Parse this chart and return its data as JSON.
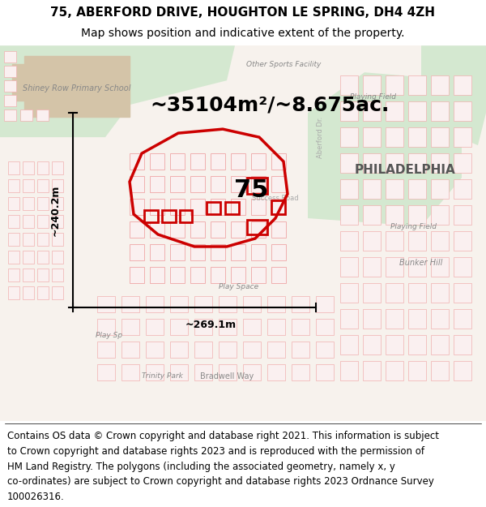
{
  "title_line1": "75, ABERFORD DRIVE, HOUGHTON LE SPRING, DH4 4ZH",
  "title_line2": "Map shows position and indicative extent of the property.",
  "area_text": "~35104m²/~8.675ac.",
  "measurement_v": "~240.2m",
  "measurement_h": "~269.1m",
  "label_75": "75",
  "footer_lines": [
    "Contains OS data © Crown copyright and database right 2021. This information is subject",
    "to Crown copyright and database rights 2023 and is reproduced with the permission of",
    "HM Land Registry. The polygons (including the associated geometry, namely x, y",
    "co-ordinates) are subject to Crown copyright and database rights 2023 Ordnance Survey",
    "100026316."
  ],
  "map_bg": "#f8f4f0",
  "title_fontsize": 11,
  "subtitle_fontsize": 10,
  "area_fontsize": 18,
  "label_fontsize": 22,
  "footer_fontsize": 8.5,
  "fig_width": 6.0,
  "fig_height": 6.25,
  "dpi": 100,
  "red_outline_color": "#cc0000",
  "light_red": "#f0b0b0",
  "text_gray": "#888888"
}
